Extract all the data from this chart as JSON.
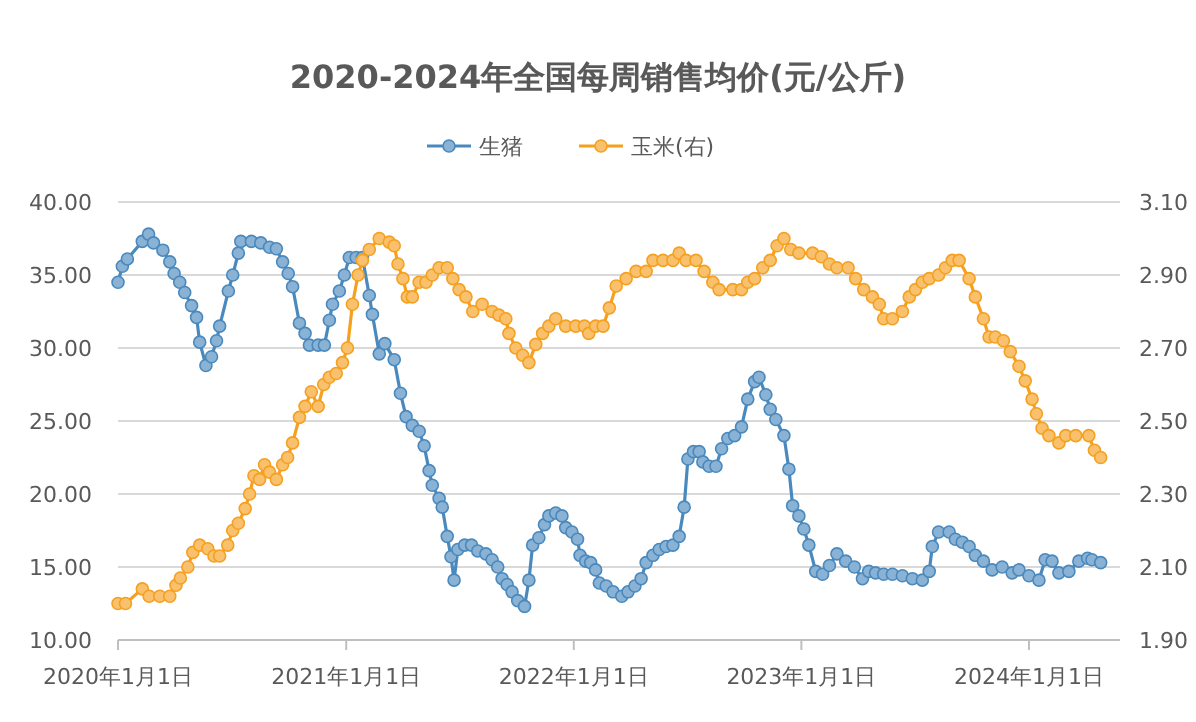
{
  "chart_data": {
    "type": "line",
    "title": "2020-2024年全国每周销售均价(元/公斤)",
    "xlim": [
      "2020-01-01",
      "2024-05-26"
    ],
    "xticks": [
      {
        "value": "2020-01-01",
        "label": "2020年1月1日"
      },
      {
        "value": "2021-01-01",
        "label": "2021年1月1日"
      },
      {
        "value": "2022-01-01",
        "label": "2022年1月1日"
      },
      {
        "value": "2023-01-01",
        "label": "2023年1月1日"
      },
      {
        "value": "2024-01-01",
        "label": "2024年1月1日"
      }
    ],
    "ylim": [
      10,
      40
    ],
    "yticks": [
      {
        "value": 10,
        "label": "10.00"
      },
      {
        "value": 15,
        "label": "15.00"
      },
      {
        "value": 20,
        "label": "20.00"
      },
      {
        "value": 25,
        "label": "25.00"
      },
      {
        "value": 30,
        "label": "30.00"
      },
      {
        "value": 35,
        "label": "35.00"
      },
      {
        "value": 40,
        "label": "40.00"
      }
    ],
    "y2lim": [
      1.9,
      3.1
    ],
    "y2ticks": [
      {
        "value": 1.9,
        "label": "1.90"
      },
      {
        "value": 2.1,
        "label": "2.10"
      },
      {
        "value": 2.3,
        "label": "2.30"
      },
      {
        "value": 2.5,
        "label": "2.50"
      },
      {
        "value": 2.7,
        "label": "2.70"
      },
      {
        "value": 2.9,
        "label": "2.90"
      },
      {
        "value": 3.1,
        "label": "3.10"
      }
    ],
    "grid": "y",
    "legend": "top",
    "marker": "circle",
    "line_style": "solid",
    "series": [
      {
        "name": "生猪",
        "color": "#4a89bd",
        "x": [
          "2020-01-01",
          "2020-01-08",
          "2020-01-16",
          "2020-02-09",
          "2020-02-19",
          "2020-02-27",
          "2020-03-13",
          "2020-03-24",
          "2020-03-31",
          "2020-04-09",
          "2020-04-17",
          "2020-04-28",
          "2020-05-06",
          "2020-05-11",
          "2020-05-21",
          "2020-05-30",
          "2020-06-07",
          "2020-06-12",
          "2020-06-26",
          "2020-07-03",
          "2020-07-12",
          "2020-07-16",
          "2020-08-02",
          "2020-08-17",
          "2020-08-31",
          "2020-09-11",
          "2020-09-21",
          "2020-09-30",
          "2020-10-07",
          "2020-10-18",
          "2020-10-27",
          "2020-11-03",
          "2020-11-17",
          "2020-11-27",
          "2020-12-05",
          "2020-12-10",
          "2020-12-21",
          "2020-12-29",
          "2021-01-06",
          "2021-01-17",
          "2021-01-27",
          "2021-02-07",
          "2021-02-12",
          "2021-02-23",
          "2021-03-04",
          "2021-03-19",
          "2021-03-29",
          "2021-04-07",
          "2021-04-17",
          "2021-04-28",
          "2021-05-06",
          "2021-05-14",
          "2021-05-19",
          "2021-05-30",
          "2021-06-04",
          "2021-06-12",
          "2021-06-18",
          "2021-06-23",
          "2021-06-29",
          "2021-07-10",
          "2021-07-21",
          "2021-07-31",
          "2021-08-13",
          "2021-08-23",
          "2021-09-01",
          "2021-09-08",
          "2021-09-16",
          "2021-09-24",
          "2021-10-03",
          "2021-10-14",
          "2021-10-21",
          "2021-10-27",
          "2021-11-06",
          "2021-11-15",
          "2021-11-22",
          "2021-12-03",
          "2021-12-13",
          "2021-12-19",
          "2021-12-29",
          "2022-01-07",
          "2022-01-11",
          "2022-01-20",
          "2022-01-28",
          "2022-02-05",
          "2022-02-11",
          "2022-02-22",
          "2022-03-05",
          "2022-03-19",
          "2022-03-29",
          "2022-04-09",
          "2022-04-19",
          "2022-04-27",
          "2022-05-08",
          "2022-05-18",
          "2022-05-29",
          "2022-06-09",
          "2022-06-19",
          "2022-06-27",
          "2022-07-03",
          "2022-07-12",
          "2022-07-21",
          "2022-07-27",
          "2022-08-06",
          "2022-08-17",
          "2022-08-26",
          "2022-09-05",
          "2022-09-16",
          "2022-09-27",
          "2022-10-07",
          "2022-10-18",
          "2022-10-25",
          "2022-11-05",
          "2022-11-12",
          "2022-11-21",
          "2022-12-04",
          "2022-12-12",
          "2022-12-18",
          "2022-12-28",
          "2023-01-05",
          "2023-01-13",
          "2023-01-24",
          "2023-02-04",
          "2023-02-15",
          "2023-02-27",
          "2023-03-13",
          "2023-03-27",
          "2023-04-09",
          "2023-04-19",
          "2023-04-30",
          "2023-05-13",
          "2023-05-27",
          "2023-06-12",
          "2023-06-28",
          "2023-07-14",
          "2023-07-25",
          "2023-07-30",
          "2023-08-09",
          "2023-08-26",
          "2023-09-05",
          "2023-09-16",
          "2023-09-27",
          "2023-10-07",
          "2023-10-20",
          "2023-11-03",
          "2023-11-19",
          "2023-12-05",
          "2023-12-16",
          "2024-01-01",
          "2024-01-17",
          "2024-01-27",
          "2024-02-07",
          "2024-02-18",
          "2024-03-05",
          "2024-03-21",
          "2024-04-04",
          "2024-04-11",
          "2024-04-25"
        ],
        "values": [
          34.5,
          35.6,
          36.1,
          37.3,
          37.8,
          37.2,
          36.7,
          35.9,
          35.1,
          34.5,
          33.8,
          32.9,
          32.1,
          30.4,
          28.8,
          29.4,
          30.5,
          31.5,
          33.9,
          35,
          36.5,
          37.3,
          37.3,
          37.2,
          36.9,
          36.8,
          35.9,
          35.1,
          34.2,
          31.7,
          31,
          30.2,
          30.2,
          30.2,
          31.9,
          33,
          33.9,
          35,
          36.2,
          36.2,
          36.2,
          33.6,
          32.3,
          29.6,
          30.3,
          29.2,
          26.9,
          25.3,
          24.7,
          24.3,
          23.3,
          21.6,
          20.6,
          19.7,
          19.1,
          17.1,
          15.7,
          14.1,
          16.2,
          16.5,
          16.5,
          16.1,
          15.9,
          15.5,
          15,
          14.2,
          13.8,
          13.3,
          12.7,
          12.3,
          14.1,
          16.5,
          17,
          17.9,
          18.5,
          18.7,
          18.5,
          17.7,
          17.4,
          16.9,
          15.8,
          15.4,
          15.3,
          14.8,
          13.9,
          13.7,
          13.3,
          13.0,
          13.3,
          13.7,
          14.2,
          15.3,
          15.8,
          16.2,
          16.4,
          16.5,
          17.1,
          19.1,
          22.4,
          22.9,
          22.9,
          22.2,
          21.9,
          21.9,
          23.1,
          23.8,
          24,
          24.6,
          26.5,
          27.7,
          28,
          26.8,
          25.8,
          25.1,
          24,
          21.7,
          19.2,
          18.5,
          17.6,
          16.5,
          14.7,
          14.5,
          15.1,
          15.9,
          15.4,
          15,
          14.2,
          14.7,
          14.6,
          14.5,
          14.5,
          14.4,
          14.2,
          14.1,
          14.7,
          16.4,
          17.4,
          17.4,
          16.9,
          16.7,
          16.4,
          15.8,
          15.4,
          14.8,
          15,
          14.6,
          14.8,
          14.4,
          14.1,
          15.5,
          15.4,
          14.6,
          14.7,
          15.4,
          15.6,
          15.5,
          15.3
        ]
      },
      {
        "name": "玉米(右)",
        "color": "#f5a01f",
        "axis": "y2",
        "x": [
          "2020-01-01",
          "2020-01-13",
          "2020-02-09",
          "2020-02-20",
          "2020-03-08",
          "2020-03-24",
          "2020-04-03",
          "2020-04-10",
          "2020-04-22",
          "2020-04-30",
          "2020-05-11",
          "2020-05-24",
          "2020-06-03",
          "2020-06-12",
          "2020-06-25",
          "2020-07-03",
          "2020-07-12",
          "2020-07-23",
          "2020-07-30",
          "2020-08-06",
          "2020-08-15",
          "2020-08-23",
          "2020-08-31",
          "2020-09-11",
          "2020-09-21",
          "2020-09-29",
          "2020-10-07",
          "2020-10-18",
          "2020-10-27",
          "2020-11-06",
          "2020-11-17",
          "2020-11-26",
          "2020-12-05",
          "2020-12-16",
          "2020-12-26",
          "2021-01-03",
          "2021-01-11",
          "2021-01-20",
          "2021-01-27",
          "2021-02-07",
          "2021-02-23",
          "2021-03-11",
          "2021-03-19",
          "2021-03-25",
          "2021-04-02",
          "2021-04-09",
          "2021-04-17",
          "2021-04-28",
          "2021-05-09",
          "2021-05-19",
          "2021-05-30",
          "2021-06-12",
          "2021-06-21",
          "2021-07-01",
          "2021-07-12",
          "2021-07-23",
          "2021-08-07",
          "2021-08-23",
          "2021-09-03",
          "2021-09-14",
          "2021-09-19",
          "2021-09-30",
          "2021-10-11",
          "2021-10-21",
          "2021-11-01",
          "2021-11-12",
          "2021-11-22",
          "2021-12-03",
          "2021-12-19",
          "2022-01-04",
          "2022-01-18",
          "2022-01-25",
          "2022-02-05",
          "2022-02-17",
          "2022-02-27",
          "2022-03-10",
          "2022-03-26",
          "2022-04-11",
          "2022-04-27",
          "2022-05-08",
          "2022-05-24",
          "2022-06-09",
          "2022-06-19",
          "2022-06-30",
          "2022-07-16",
          "2022-07-29",
          "2022-08-12",
          "2022-08-22",
          "2022-09-13",
          "2022-09-27",
          "2022-10-07",
          "2022-10-18",
          "2022-10-31",
          "2022-11-12",
          "2022-11-23",
          "2022-12-04",
          "2022-12-15",
          "2022-12-28",
          "2023-01-19",
          "2023-02-02",
          "2023-02-15",
          "2023-02-27",
          "2023-03-17",
          "2023-03-29",
          "2023-04-11",
          "2023-04-25",
          "2023-05-06",
          "2023-05-13",
          "2023-05-27",
          "2023-06-12",
          "2023-06-23",
          "2023-07-03",
          "2023-07-14",
          "2023-07-25",
          "2023-08-09",
          "2023-08-20",
          "2023-08-31",
          "2023-09-11",
          "2023-09-27",
          "2023-10-07",
          "2023-10-20",
          "2023-10-29",
          "2023-11-08",
          "2023-11-21",
          "2023-12-02",
          "2023-12-16",
          "2023-12-26",
          "2024-01-06",
          "2024-01-13",
          "2024-01-22",
          "2024-02-02",
          "2024-02-18",
          "2024-02-29",
          "2024-03-16",
          "2024-04-06",
          "2024-04-15",
          "2024-04-25"
        ],
        "values": [
          2.0,
          2.0,
          2.04,
          2.02,
          2.02,
          2.02,
          2.05,
          2.07,
          2.1,
          2.14,
          2.16,
          2.15,
          2.13,
          2.13,
          2.16,
          2.2,
          2.22,
          2.26,
          2.3,
          2.35,
          2.34,
          2.38,
          2.36,
          2.34,
          2.38,
          2.4,
          2.44,
          2.51,
          2.54,
          2.58,
          2.54,
          2.6,
          2.62,
          2.63,
          2.66,
          2.7,
          2.82,
          2.9,
          2.94,
          2.97,
          3.0,
          2.99,
          2.98,
          2.93,
          2.89,
          2.84,
          2.84,
          2.88,
          2.88,
          2.9,
          2.92,
          2.92,
          2.89,
          2.86,
          2.84,
          2.8,
          2.82,
          2.8,
          2.79,
          2.78,
          2.74,
          2.7,
          2.68,
          2.66,
          2.71,
          2.74,
          2.76,
          2.78,
          2.76,
          2.76,
          2.76,
          2.74,
          2.76,
          2.76,
          2.81,
          2.87,
          2.89,
          2.91,
          2.91,
          2.94,
          2.94,
          2.94,
          2.96,
          2.94,
          2.94,
          2.91,
          2.88,
          2.86,
          2.86,
          2.86,
          2.88,
          2.89,
          2.92,
          2.94,
          2.98,
          3.0,
          2.97,
          2.96,
          2.96,
          2.95,
          2.93,
          2.92,
          2.92,
          2.89,
          2.86,
          2.84,
          2.82,
          2.78,
          2.78,
          2.8,
          2.84,
          2.86,
          2.88,
          2.89,
          2.9,
          2.92,
          2.94,
          2.94,
          2.89,
          2.84,
          2.78,
          2.73,
          2.73,
          2.72,
          2.69,
          2.65,
          2.61,
          2.56,
          2.52,
          2.48,
          2.46,
          2.44,
          2.46,
          2.46,
          2.46,
          2.42,
          2.4
        ]
      }
    ]
  }
}
